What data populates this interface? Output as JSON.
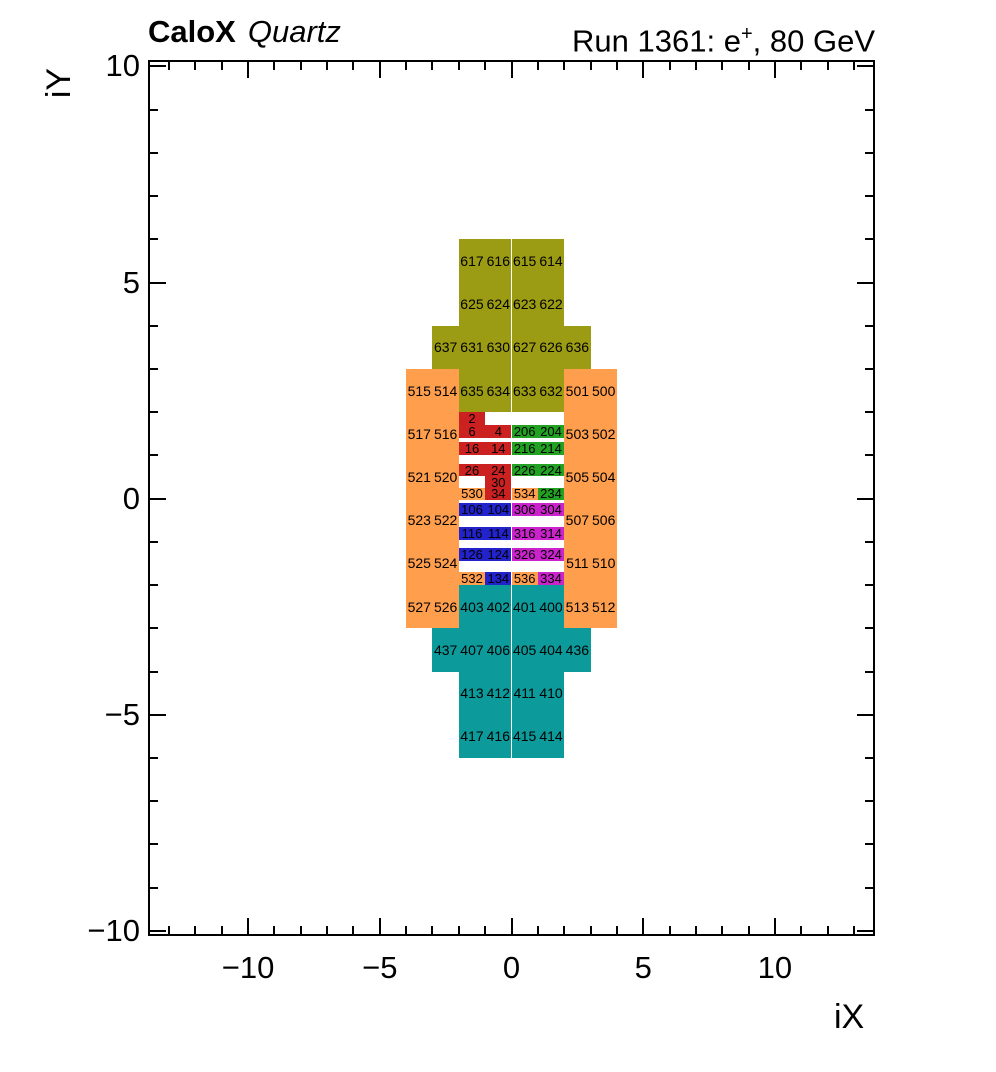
{
  "header": {
    "experiment": "CaloX",
    "detector": "Quartz",
    "run_prefix": "Run 1361: e",
    "run_sup": "+",
    "run_suffix": ", 80 GeV"
  },
  "axes": {
    "x": {
      "title": "iX"
    },
    "y": {
      "title": "iY"
    }
  },
  "chart_data": {
    "type": "heatmap",
    "title": "CaloX Quartz",
    "subtitle": "Run 1361: e+, 80 GeV",
    "xlabel": "iX",
    "ylabel": "iY",
    "xlim": [
      -13.8,
      13.8
    ],
    "ylim": [
      -10.12,
      10.15
    ],
    "grid": false,
    "x_ticks": {
      "major": [
        -10,
        -5,
        0,
        5,
        10
      ],
      "labels": [
        "−10",
        "−5",
        "0",
        "5",
        "10"
      ],
      "minor_step": 1,
      "minor_range": [
        -13,
        13
      ]
    },
    "y_ticks": {
      "major": [
        -10,
        -5,
        0,
        5,
        10
      ],
      "labels": [
        "−10",
        "−5",
        "0",
        "5",
        "10"
      ],
      "minor_step": 1,
      "minor_range": [
        -10,
        10
      ]
    },
    "colors": {
      "olive": "#9C9C14",
      "orange": "#FF9E4D",
      "teal": "#0C9A9A",
      "red": "#CB2121",
      "green": "#23A123",
      "blue": "#2323CB",
      "magenta": "#CB23CB"
    },
    "cells": [
      {
        "id": "617",
        "c": "olive",
        "x": -2,
        "y": 6,
        "w": 1,
        "h": 1
      },
      {
        "id": "616",
        "c": "olive",
        "x": -1,
        "y": 6,
        "w": 1,
        "h": 1
      },
      {
        "id": "615",
        "c": "olive",
        "x": 0,
        "y": 6,
        "w": 1,
        "h": 1
      },
      {
        "id": "614",
        "c": "olive",
        "x": 1,
        "y": 6,
        "w": 1,
        "h": 1
      },
      {
        "id": "625",
        "c": "olive",
        "x": -2,
        "y": 5,
        "w": 1,
        "h": 1
      },
      {
        "id": "624",
        "c": "olive",
        "x": -1,
        "y": 5,
        "w": 1,
        "h": 1
      },
      {
        "id": "623",
        "c": "olive",
        "x": 0,
        "y": 5,
        "w": 1,
        "h": 1
      },
      {
        "id": "622",
        "c": "olive",
        "x": 1,
        "y": 5,
        "w": 1,
        "h": 1
      },
      {
        "id": "637",
        "c": "olive",
        "x": -3,
        "y": 4,
        "w": 1,
        "h": 1
      },
      {
        "id": "631",
        "c": "olive",
        "x": -2,
        "y": 4,
        "w": 1,
        "h": 1
      },
      {
        "id": "630",
        "c": "olive",
        "x": -1,
        "y": 4,
        "w": 1,
        "h": 1
      },
      {
        "id": "627",
        "c": "olive",
        "x": 0,
        "y": 4,
        "w": 1,
        "h": 1
      },
      {
        "id": "626",
        "c": "olive",
        "x": 1,
        "y": 4,
        "w": 1,
        "h": 1
      },
      {
        "id": "636",
        "c": "olive",
        "x": 2,
        "y": 4,
        "w": 1,
        "h": 1
      },
      {
        "id": "635",
        "c": "olive",
        "x": -2,
        "y": 3,
        "w": 1,
        "h": 1
      },
      {
        "id": "634",
        "c": "olive",
        "x": -1,
        "y": 3,
        "w": 1,
        "h": 1
      },
      {
        "id": "633",
        "c": "olive",
        "x": 0,
        "y": 3,
        "w": 1,
        "h": 1
      },
      {
        "id": "632",
        "c": "olive",
        "x": 1,
        "y": 3,
        "w": 1,
        "h": 1
      },
      {
        "id": "515",
        "c": "orange",
        "x": -4,
        "y": 3,
        "w": 1,
        "h": 1
      },
      {
        "id": "514",
        "c": "orange",
        "x": -3,
        "y": 3,
        "w": 1,
        "h": 1
      },
      {
        "id": "501",
        "c": "orange",
        "x": 2,
        "y": 3,
        "w": 1,
        "h": 1
      },
      {
        "id": "500",
        "c": "orange",
        "x": 3,
        "y": 3,
        "w": 1,
        "h": 1
      },
      {
        "id": "517",
        "c": "orange",
        "x": -4,
        "y": 2,
        "w": 1,
        "h": 1
      },
      {
        "id": "516",
        "c": "orange",
        "x": -3,
        "y": 2,
        "w": 1,
        "h": 1
      },
      {
        "id": "503",
        "c": "orange",
        "x": 2,
        "y": 2,
        "w": 1,
        "h": 1
      },
      {
        "id": "502",
        "c": "orange",
        "x": 3,
        "y": 2,
        "w": 1,
        "h": 1
      },
      {
        "id": "521",
        "c": "orange",
        "x": -4,
        "y": 1,
        "w": 1,
        "h": 1
      },
      {
        "id": "520",
        "c": "orange",
        "x": -3,
        "y": 1,
        "w": 1,
        "h": 1
      },
      {
        "id": "505",
        "c": "orange",
        "x": 2,
        "y": 1,
        "w": 1,
        "h": 1
      },
      {
        "id": "504",
        "c": "orange",
        "x": 3,
        "y": 1,
        "w": 1,
        "h": 1
      },
      {
        "id": "523",
        "c": "orange",
        "x": -4,
        "y": 0,
        "w": 1,
        "h": 1
      },
      {
        "id": "522",
        "c": "orange",
        "x": -3,
        "y": 0,
        "w": 1,
        "h": 1
      },
      {
        "id": "507",
        "c": "orange",
        "x": 2,
        "y": 0,
        "w": 1,
        "h": 1
      },
      {
        "id": "506",
        "c": "orange",
        "x": 3,
        "y": 0,
        "w": 1,
        "h": 1
      },
      {
        "id": "525",
        "c": "orange",
        "x": -4,
        "y": -1,
        "w": 1,
        "h": 1
      },
      {
        "id": "524",
        "c": "orange",
        "x": -3,
        "y": -1,
        "w": 1,
        "h": 1
      },
      {
        "id": "511",
        "c": "orange",
        "x": 2,
        "y": -1,
        "w": 1,
        "h": 1
      },
      {
        "id": "510",
        "c": "orange",
        "x": 3,
        "y": -1,
        "w": 1,
        "h": 1
      },
      {
        "id": "527",
        "c": "orange",
        "x": -4,
        "y": -2,
        "w": 1,
        "h": 1
      },
      {
        "id": "526",
        "c": "orange",
        "x": -3,
        "y": -2,
        "w": 1,
        "h": 1
      },
      {
        "id": "513",
        "c": "orange",
        "x": 2,
        "y": -2,
        "w": 1,
        "h": 1
      },
      {
        "id": "512",
        "c": "orange",
        "x": 3,
        "y": -2,
        "w": 1,
        "h": 1
      },
      {
        "id": "403",
        "c": "teal",
        "x": -2,
        "y": -2,
        "w": 1,
        "h": 1
      },
      {
        "id": "402",
        "c": "teal",
        "x": -1,
        "y": -2,
        "w": 1,
        "h": 1
      },
      {
        "id": "401",
        "c": "teal",
        "x": 0,
        "y": -2,
        "w": 1,
        "h": 1
      },
      {
        "id": "400",
        "c": "teal",
        "x": 1,
        "y": -2,
        "w": 1,
        "h": 1
      },
      {
        "id": "437",
        "c": "teal",
        "x": -3,
        "y": -3,
        "w": 1,
        "h": 1
      },
      {
        "id": "407",
        "c": "teal",
        "x": -2,
        "y": -3,
        "w": 1,
        "h": 1
      },
      {
        "id": "406",
        "c": "teal",
        "x": -1,
        "y": -3,
        "w": 1,
        "h": 1
      },
      {
        "id": "405",
        "c": "teal",
        "x": 0,
        "y": -3,
        "w": 1,
        "h": 1
      },
      {
        "id": "404",
        "c": "teal",
        "x": 1,
        "y": -3,
        "w": 1,
        "h": 1
      },
      {
        "id": "436",
        "c": "teal",
        "x": 2,
        "y": -3,
        "w": 1,
        "h": 1
      },
      {
        "id": "413",
        "c": "teal",
        "x": -2,
        "y": -4,
        "w": 1,
        "h": 1
      },
      {
        "id": "412",
        "c": "teal",
        "x": -1,
        "y": -4,
        "w": 1,
        "h": 1
      },
      {
        "id": "411",
        "c": "teal",
        "x": 0,
        "y": -4,
        "w": 1,
        "h": 1
      },
      {
        "id": "410",
        "c": "teal",
        "x": 1,
        "y": -4,
        "w": 1,
        "h": 1
      },
      {
        "id": "417",
        "c": "teal",
        "x": -2,
        "y": -5,
        "w": 1,
        "h": 1
      },
      {
        "id": "416",
        "c": "teal",
        "x": -1,
        "y": -5,
        "w": 1,
        "h": 1
      },
      {
        "id": "415",
        "c": "teal",
        "x": 0,
        "y": -5,
        "w": 1,
        "h": 1
      },
      {
        "id": "414",
        "c": "teal",
        "x": 1,
        "y": -5,
        "w": 1,
        "h": 1
      },
      {
        "id": "2",
        "c": "red",
        "x": -2,
        "y": 2.0,
        "w": 1,
        "h": 0.3,
        "mini": true
      },
      {
        "id": "6",
        "c": "red",
        "x": -2,
        "y": 1.7,
        "w": 1,
        "h": 0.3,
        "mini": true
      },
      {
        "id": "4",
        "c": "red",
        "x": -1,
        "y": 1.7,
        "w": 1,
        "h": 0.3,
        "mini": true
      },
      {
        "id": "206",
        "c": "green",
        "x": 0,
        "y": 1.7,
        "w": 1,
        "h": 0.3,
        "mini": true
      },
      {
        "id": "204",
        "c": "green",
        "x": 1,
        "y": 1.7,
        "w": 1,
        "h": 0.3,
        "mini": true
      },
      {
        "id": "16",
        "c": "red",
        "x": -2,
        "y": 1.3,
        "w": 1,
        "h": 0.3,
        "mini": true
      },
      {
        "id": "14",
        "c": "red",
        "x": -1,
        "y": 1.3,
        "w": 1,
        "h": 0.3,
        "mini": true
      },
      {
        "id": "216",
        "c": "green",
        "x": 0,
        "y": 1.3,
        "w": 1,
        "h": 0.3,
        "mini": true
      },
      {
        "id": "214",
        "c": "green",
        "x": 1,
        "y": 1.3,
        "w": 1,
        "h": 0.3,
        "mini": true
      },
      {
        "id": "26",
        "c": "red",
        "x": -2,
        "y": 0.8,
        "w": 1,
        "h": 0.28,
        "mini": true
      },
      {
        "id": "24",
        "c": "red",
        "x": -1,
        "y": 0.8,
        "w": 1,
        "h": 0.28,
        "mini": true
      },
      {
        "id": "226",
        "c": "green",
        "x": 0,
        "y": 0.8,
        "w": 1,
        "h": 0.28,
        "mini": true
      },
      {
        "id": "224",
        "c": "green",
        "x": 1,
        "y": 0.8,
        "w": 1,
        "h": 0.28,
        "mini": true
      },
      {
        "id": "30",
        "c": "red",
        "x": -1,
        "y": 0.52,
        "w": 1,
        "h": 0.27,
        "mini": true
      },
      {
        "id": "530",
        "c": "orange",
        "x": -2,
        "y": 0.25,
        "w": 1,
        "h": 0.27,
        "mini": true
      },
      {
        "id": "34",
        "c": "red",
        "x": -1,
        "y": 0.25,
        "w": 1,
        "h": 0.27,
        "mini": true
      },
      {
        "id": "534",
        "c": "orange",
        "x": 0,
        "y": 0.25,
        "w": 1,
        "h": 0.27,
        "mini": true
      },
      {
        "id": "234",
        "c": "green",
        "x": 1,
        "y": 0.25,
        "w": 1,
        "h": 0.27,
        "mini": true
      },
      {
        "id": "106",
        "c": "blue",
        "x": -2,
        "y": -0.1,
        "w": 1,
        "h": 0.3,
        "mini": true
      },
      {
        "id": "104",
        "c": "blue",
        "x": -1,
        "y": -0.1,
        "w": 1,
        "h": 0.3,
        "mini": true
      },
      {
        "id": "306",
        "c": "magenta",
        "x": 0,
        "y": -0.1,
        "w": 1,
        "h": 0.3,
        "mini": true
      },
      {
        "id": "304",
        "c": "magenta",
        "x": 1,
        "y": -0.1,
        "w": 1,
        "h": 0.3,
        "mini": true
      },
      {
        "id": "116",
        "c": "blue",
        "x": -2,
        "y": -0.65,
        "w": 1,
        "h": 0.3,
        "mini": true
      },
      {
        "id": "114",
        "c": "blue",
        "x": -1,
        "y": -0.65,
        "w": 1,
        "h": 0.3,
        "mini": true
      },
      {
        "id": "316",
        "c": "magenta",
        "x": 0,
        "y": -0.65,
        "w": 1,
        "h": 0.3,
        "mini": true
      },
      {
        "id": "314",
        "c": "magenta",
        "x": 1,
        "y": -0.65,
        "w": 1,
        "h": 0.3,
        "mini": true
      },
      {
        "id": "126",
        "c": "blue",
        "x": -2,
        "y": -1.15,
        "w": 1,
        "h": 0.3,
        "mini": true
      },
      {
        "id": "124",
        "c": "blue",
        "x": -1,
        "y": -1.15,
        "w": 1,
        "h": 0.3,
        "mini": true
      },
      {
        "id": "326",
        "c": "magenta",
        "x": 0,
        "y": -1.15,
        "w": 1,
        "h": 0.3,
        "mini": true
      },
      {
        "id": "324",
        "c": "magenta",
        "x": 1,
        "y": -1.15,
        "w": 1,
        "h": 0.3,
        "mini": true
      },
      {
        "id": "532",
        "c": "orange",
        "x": -2,
        "y": -1.7,
        "w": 1,
        "h": 0.3,
        "mini": true
      },
      {
        "id": "134",
        "c": "blue",
        "x": -1,
        "y": -1.7,
        "w": 1,
        "h": 0.3,
        "mini": true
      },
      {
        "id": "536",
        "c": "orange",
        "x": 0,
        "y": -1.7,
        "w": 1,
        "h": 0.3,
        "mini": true
      },
      {
        "id": "334",
        "c": "magenta",
        "x": 1,
        "y": -1.7,
        "w": 1,
        "h": 0.3,
        "mini": true
      }
    ]
  }
}
